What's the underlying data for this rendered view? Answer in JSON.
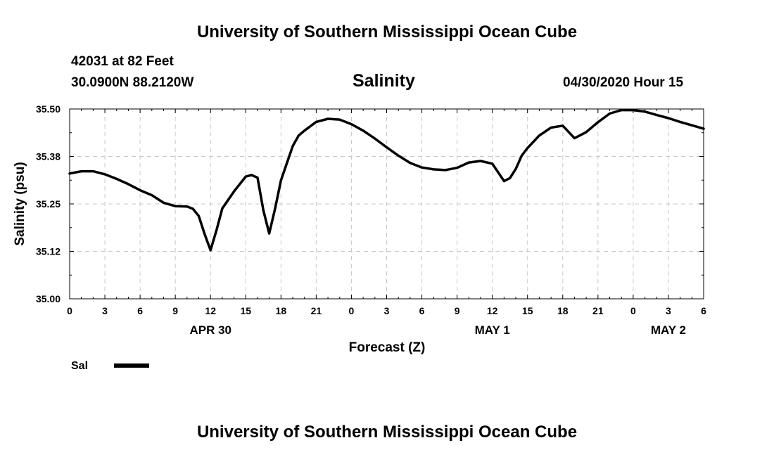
{
  "header": {
    "title": "University of Southern Mississippi Ocean Cube",
    "station": "42031 at 82 Feet",
    "location": "30.0900N 88.2120W",
    "chart_title": "Salinity",
    "timestamp": "04/30/2020 Hour 15"
  },
  "footer": {
    "title": "University of Southern Mississippi Ocean Cube"
  },
  "chart_data": {
    "type": "line",
    "title": "Salinity",
    "xlabel": "Forecast (Z)",
    "ylabel": "Salinity (psu)",
    "ylim": [
      35.0,
      35.5
    ],
    "xlim": [
      0,
      54
    ],
    "x_unit": "hours from 04/30/2020 00Z",
    "y_ticks": [
      "35.00",
      "35.12",
      "35.25",
      "35.38",
      "35.50"
    ],
    "y_tick_values": [
      35.0,
      35.125,
      35.25,
      35.375,
      35.5
    ],
    "x_ticks": [
      "0",
      "3",
      "6",
      "9",
      "12",
      "15",
      "18",
      "21",
      "0",
      "3",
      "6",
      "9",
      "12",
      "15",
      "18",
      "21",
      "0",
      "3",
      "6"
    ],
    "day_labels": [
      {
        "label": "APR 30",
        "x": 12
      },
      {
        "label": "MAY 1",
        "x": 36
      },
      {
        "label": "MAY 2",
        "x": 51
      }
    ],
    "grid": true,
    "legend": {
      "placement": "bottom-left"
    },
    "series": [
      {
        "name": "Sal",
        "color": "#000000",
        "x": [
          0,
          1,
          2,
          3,
          4,
          5,
          6,
          7,
          8,
          9,
          10,
          10.5,
          11,
          11.5,
          12,
          12.5,
          13,
          14,
          15,
          15.5,
          16,
          16.5,
          17,
          17.5,
          18,
          19,
          19.5,
          20,
          21,
          22,
          23,
          24,
          25,
          26,
          27,
          28,
          29,
          30,
          31,
          32,
          33,
          34,
          35,
          36,
          37,
          37.5,
          38,
          38.5,
          39,
          40,
          41,
          42,
          43,
          44,
          45,
          46,
          47,
          48,
          49,
          50,
          51,
          52,
          53,
          54
        ],
        "values": [
          35.33,
          35.336,
          35.336,
          35.328,
          35.316,
          35.302,
          35.286,
          35.273,
          35.253,
          35.244,
          35.243,
          35.237,
          35.218,
          35.17,
          35.128,
          35.18,
          35.238,
          35.283,
          35.322,
          35.326,
          35.319,
          35.233,
          35.172,
          35.238,
          35.312,
          35.402,
          35.43,
          35.443,
          35.466,
          35.474,
          35.472,
          35.46,
          35.443,
          35.422,
          35.399,
          35.377,
          35.358,
          35.346,
          35.341,
          35.339,
          35.345,
          35.359,
          35.363,
          35.356,
          35.31,
          35.318,
          35.342,
          35.377,
          35.397,
          35.43,
          35.451,
          35.456,
          35.423,
          35.439,
          35.465,
          35.488,
          35.497,
          35.497,
          35.493,
          35.484,
          35.476,
          35.466,
          35.457,
          35.448
        ]
      }
    ]
  }
}
